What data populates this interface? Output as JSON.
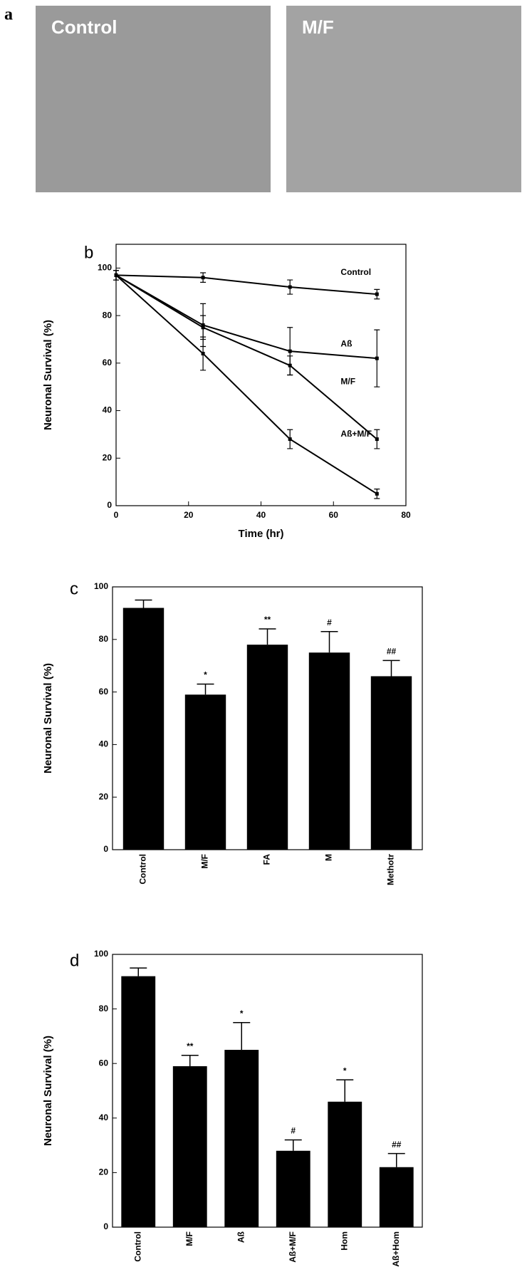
{
  "panel_a": {
    "label": "a",
    "images": [
      "Control",
      "M/F"
    ]
  },
  "chart_data": [
    {
      "type": "line",
      "panel": "b",
      "ylabel": "Neuronal Survival (%)",
      "xlabel": "Time (hr)",
      "x": [
        0,
        24,
        48,
        72
      ],
      "xlim": [
        0,
        80
      ],
      "xticks": [
        0,
        20,
        40,
        60,
        80
      ],
      "ylim": [
        0,
        110
      ],
      "yticks": [
        0,
        20,
        40,
        60,
        80,
        100
      ],
      "series": [
        {
          "name": "Control",
          "color": "#000000",
          "values": [
            97,
            96,
            92,
            89
          ],
          "errors": [
            2,
            2,
            3,
            2
          ]
        },
        {
          "name": "Aß",
          "color": "#000000",
          "values": [
            97,
            76,
            65,
            62
          ],
          "errors": [
            2,
            9,
            10,
            12
          ]
        },
        {
          "name": "M/F",
          "color": "#000000",
          "values": [
            97,
            75,
            59,
            28
          ],
          "errors": [
            2,
            5,
            4,
            4
          ]
        },
        {
          "name": "Aß+M/F",
          "color": "#000000",
          "values": [
            97,
            64,
            28,
            5
          ],
          "errors": [
            2,
            7,
            4,
            2
          ]
        }
      ]
    },
    {
      "type": "bar",
      "panel": "c",
      "ylabel": "Neuronal Survival (%)",
      "categories": [
        "Control",
        "M/F",
        "FA",
        "M",
        "Methotr"
      ],
      "values": [
        92,
        59,
        78,
        75,
        66
      ],
      "errors": [
        3,
        4,
        6,
        8,
        6
      ],
      "annotations": [
        null,
        "*",
        "**",
        "#",
        "##"
      ],
      "color": "#000000",
      "ylim": [
        0,
        100
      ],
      "yticks": [
        0,
        20,
        40,
        60,
        80,
        100
      ]
    },
    {
      "type": "bar",
      "panel": "d",
      "ylabel": "Neuronal Survival (%)",
      "categories": [
        "Control",
        "M/F",
        "Aß",
        "Aß+M/F",
        "Hom",
        "Aß+Hom"
      ],
      "values": [
        92,
        59,
        65,
        28,
        46,
        22
      ],
      "errors": [
        3,
        4,
        10,
        4,
        8,
        5
      ],
      "annotations": [
        null,
        "**",
        "*",
        "#",
        "*",
        "##"
      ],
      "color": "#000000",
      "ylim": [
        0,
        100
      ],
      "yticks": [
        0,
        20,
        40,
        60,
        80,
        100
      ]
    }
  ]
}
